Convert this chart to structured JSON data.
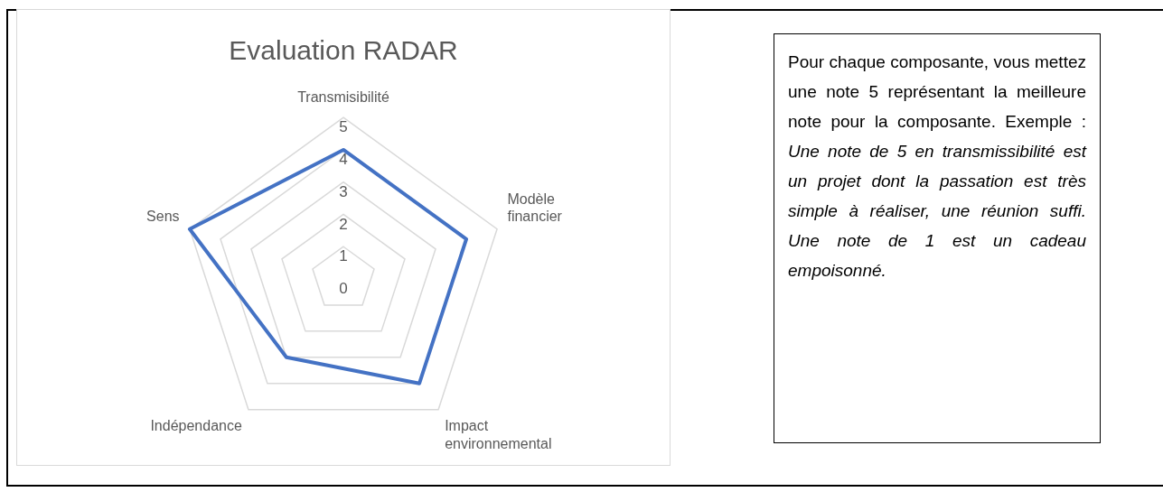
{
  "chart_data": {
    "type": "radar",
    "title": "Evaluation RADAR",
    "categories": [
      "Transmisibilité",
      "Modèle financier",
      "Impact environnemental",
      "Indépendance",
      "Sens"
    ],
    "series": [
      {
        "color": "#4472c4",
        "values": [
          4,
          4,
          4,
          3,
          5
        ]
      }
    ],
    "ylim": [
      0,
      5
    ],
    "yticks": [
      0,
      1,
      2,
      3,
      4,
      5
    ],
    "grid": true,
    "marker": "none",
    "annotations": [
      "Pour chaque composante, vous mettez une note 5 représentant la meilleure note pour la composante. Exemple :",
      "Une note de 5 en transmissibilité est un projet dont la passation est très simple à réaliser, une réunion suffi. Une note de 1 est un cadeau empoisonné."
    ]
  }
}
